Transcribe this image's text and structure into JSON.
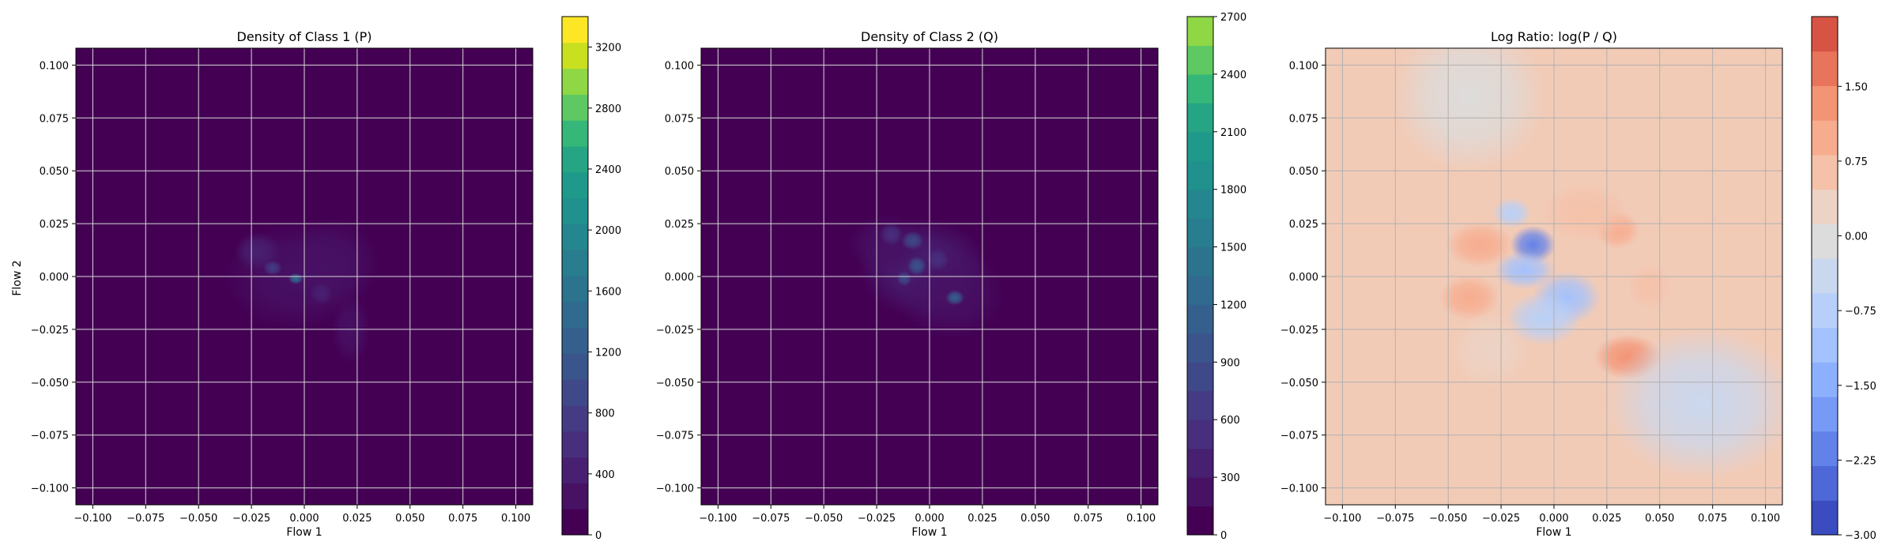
{
  "chart_data": [
    {
      "type": "heatmap",
      "title": "Density of Class 1 (P)",
      "xlabel": "Flow 1",
      "ylabel": "Flow 2",
      "xlim": [
        -0.108,
        0.108
      ],
      "ylim": [
        -0.108,
        0.108
      ],
      "xticks": [
        -0.1,
        -0.075,
        -0.05,
        -0.025,
        0.0,
        0.025,
        0.05,
        0.075,
        0.1
      ],
      "xtick_labels": [
        "−0.100",
        "−0.075",
        "−0.050",
        "−0.025",
        "0.000",
        "0.025",
        "0.050",
        "0.075",
        "0.100"
      ],
      "yticks": [
        -0.1,
        -0.075,
        -0.05,
        -0.025,
        0.0,
        0.025,
        0.05,
        0.075,
        0.1
      ],
      "ytick_labels": [
        "−0.100",
        "−0.075",
        "−0.050",
        "−0.025",
        "0.000",
        "0.025",
        "0.050",
        "0.075",
        "0.100"
      ],
      "grid": true,
      "colormap": "viridis",
      "background_color": "#440154",
      "colorbar": {
        "min": 0,
        "max": 3400,
        "ticks": [
          0,
          400,
          800,
          1200,
          1600,
          2000,
          2400,
          2800,
          3200
        ],
        "tick_labels": [
          "0",
          "400",
          "800",
          "1200",
          "1600",
          "2000",
          "2400",
          "2800",
          "3200"
        ],
        "levels": 17,
        "colors": [
          "#440154",
          "#471164",
          "#482071",
          "#472f7d",
          "#443b84",
          "#3f4889",
          "#3a548c",
          "#35608d",
          "#306a8e",
          "#2c738e",
          "#287d8e",
          "#24868e",
          "#20918c",
          "#1f9a8a",
          "#25a584",
          "#35b779",
          "#5ec962",
          "#8fd744",
          "#c8e020",
          "#fde725"
        ]
      },
      "blobs": [
        {
          "x": -0.005,
          "y": 0.0,
          "sx": 0.018,
          "sy": 0.014,
          "level": 0.07
        },
        {
          "x": 0.012,
          "y": 0.006,
          "sx": 0.013,
          "sy": 0.012,
          "level": 0.05
        },
        {
          "x": -0.022,
          "y": 0.012,
          "sx": 0.006,
          "sy": 0.005,
          "level": 0.08
        },
        {
          "x": 0.022,
          "y": -0.025,
          "sx": 0.005,
          "sy": 0.009,
          "level": 0.05
        },
        {
          "x": -0.004,
          "y": -0.001,
          "sx": 0.002,
          "sy": 0.0015,
          "level": 0.42
        },
        {
          "x": -0.015,
          "y": 0.004,
          "sx": 0.0025,
          "sy": 0.002,
          "level": 0.2
        },
        {
          "x": 0.008,
          "y": -0.008,
          "sx": 0.003,
          "sy": 0.003,
          "level": 0.12
        }
      ]
    },
    {
      "type": "heatmap",
      "title": "Density of Class 2 (Q)",
      "xlabel": "Flow 1",
      "ylabel": "",
      "xlim": [
        -0.108,
        0.108
      ],
      "ylim": [
        -0.108,
        0.108
      ],
      "xticks": [
        -0.1,
        -0.075,
        -0.05,
        -0.025,
        0.0,
        0.025,
        0.05,
        0.075,
        0.1
      ],
      "xtick_labels": [
        "−0.100",
        "−0.075",
        "−0.050",
        "−0.025",
        "0.000",
        "0.025",
        "0.050",
        "0.075",
        "0.100"
      ],
      "yticks": [
        -0.1,
        -0.075,
        -0.05,
        -0.025,
        0.0,
        0.025,
        0.05,
        0.075,
        0.1
      ],
      "ytick_labels": [
        "−0.100",
        "−0.075",
        "−0.050",
        "−0.025",
        "0.000",
        "0.025",
        "0.050",
        "0.075",
        "0.100"
      ],
      "grid": true,
      "colormap": "viridis",
      "background_color": "#440154",
      "colorbar": {
        "min": 0,
        "max": 2700,
        "ticks": [
          0,
          300,
          600,
          900,
          1200,
          1500,
          1800,
          2100,
          2400,
          2700
        ],
        "tick_labels": [
          "0",
          "300",
          "600",
          "900",
          "1200",
          "1500",
          "1800",
          "2100",
          "2400",
          "2700"
        ],
        "levels": 18,
        "colors": [
          "#440154",
          "#471164",
          "#482071",
          "#472f7d",
          "#443b84",
          "#3f4889",
          "#3a548c",
          "#35608d",
          "#306a8e",
          "#2c738e",
          "#287d8e",
          "#24868e",
          "#20918c",
          "#1f9a8a",
          "#25a584",
          "#35b779",
          "#5ec962",
          "#8fd744"
        ]
      },
      "blobs": [
        {
          "x": -0.003,
          "y": 0.004,
          "sx": 0.017,
          "sy": 0.013,
          "level": 0.09
        },
        {
          "x": 0.01,
          "y": -0.008,
          "sx": 0.014,
          "sy": 0.012,
          "level": 0.08
        },
        {
          "x": -0.02,
          "y": 0.015,
          "sx": 0.01,
          "sy": 0.008,
          "level": 0.06
        },
        {
          "x": -0.008,
          "y": 0.017,
          "sx": 0.003,
          "sy": 0.0025,
          "level": 0.3
        },
        {
          "x": -0.006,
          "y": 0.005,
          "sx": 0.0025,
          "sy": 0.0025,
          "level": 0.35
        },
        {
          "x": -0.012,
          "y": -0.001,
          "sx": 0.002,
          "sy": 0.002,
          "level": 0.32
        },
        {
          "x": 0.012,
          "y": -0.01,
          "sx": 0.0025,
          "sy": 0.002,
          "level": 0.42
        },
        {
          "x": 0.004,
          "y": 0.008,
          "sx": 0.003,
          "sy": 0.003,
          "level": 0.2
        },
        {
          "x": -0.018,
          "y": 0.02,
          "sx": 0.003,
          "sy": 0.003,
          "level": 0.15
        }
      ]
    },
    {
      "type": "heatmap",
      "title": "Log Ratio: log(P / Q)",
      "xlabel": "Flow 1",
      "ylabel": "",
      "xlim": [
        -0.108,
        0.108
      ],
      "ylim": [
        -0.108,
        0.108
      ],
      "xticks": [
        -0.1,
        -0.075,
        -0.05,
        -0.025,
        0.0,
        0.025,
        0.05,
        0.075,
        0.1
      ],
      "xtick_labels": [
        "−0.100",
        "−0.075",
        "−0.050",
        "−0.025",
        "0.000",
        "0.025",
        "0.050",
        "0.075",
        "0.100"
      ],
      "yticks": [
        -0.1,
        -0.075,
        -0.05,
        -0.025,
        0.0,
        0.025,
        0.05,
        0.075,
        0.1
      ],
      "ytick_labels": [
        "−0.100",
        "−0.075",
        "−0.050",
        "−0.025",
        "0.000",
        "0.025",
        "0.050",
        "0.075",
        "0.100"
      ],
      "grid": true,
      "colormap": "coolwarm",
      "background_color": "#f2cbb7",
      "colorbar": {
        "min": -3.0,
        "max": 2.2,
        "ticks": [
          -3.0,
          -2.25,
          -1.5,
          -0.75,
          0.0,
          0.75,
          1.5
        ],
        "tick_labels": [
          "−3.00",
          "−2.25",
          "−1.50",
          "−0.75",
          "0.00",
          "0.75",
          "1.50"
        ],
        "levels": 14,
        "colors": [
          "#3b4cc0",
          "#4e68d8",
          "#6282ea",
          "#779af7",
          "#8db0fe",
          "#a3c2fe",
          "#b8d0f9",
          "#cad8ef",
          "#dddcdc",
          "#ecd3c5",
          "#f5c1a9",
          "#f7ac8e",
          "#f39475",
          "#e7745b",
          "#d75445"
        ]
      },
      "blobs": [
        {
          "x": -0.01,
          "y": 0.015,
          "sx": 0.006,
          "sy": 0.005,
          "value": -2.2
        },
        {
          "x": -0.014,
          "y": 0.003,
          "sx": 0.008,
          "sy": 0.005,
          "value": -1.3
        },
        {
          "x": 0.006,
          "y": -0.01,
          "sx": 0.009,
          "sy": 0.007,
          "value": -1.0
        },
        {
          "x": -0.005,
          "y": -0.02,
          "sx": 0.01,
          "sy": 0.007,
          "value": -0.8
        },
        {
          "x": -0.02,
          "y": 0.03,
          "sx": 0.005,
          "sy": 0.004,
          "value": -0.6
        },
        {
          "x": 0.035,
          "y": -0.038,
          "sx": 0.009,
          "sy": 0.006,
          "value": 1.3
        },
        {
          "x": -0.035,
          "y": 0.015,
          "sx": 0.009,
          "sy": 0.006,
          "value": 1.0
        },
        {
          "x": -0.04,
          "y": -0.01,
          "sx": 0.008,
          "sy": 0.006,
          "value": 0.9
        },
        {
          "x": 0.03,
          "y": 0.022,
          "sx": 0.006,
          "sy": 0.005,
          "value": 0.9
        },
        {
          "x": 0.045,
          "y": -0.005,
          "sx": 0.006,
          "sy": 0.006,
          "value": 0.8
        },
        {
          "x": 0.015,
          "y": 0.03,
          "sx": 0.012,
          "sy": 0.008,
          "value": 0.6
        },
        {
          "x": -0.03,
          "y": -0.035,
          "sx": 0.01,
          "sy": 0.01,
          "value": 0.5
        },
        {
          "x": 0.07,
          "y": -0.06,
          "sx": 0.025,
          "sy": 0.02,
          "value": -0.25
        },
        {
          "x": -0.04,
          "y": 0.085,
          "sx": 0.02,
          "sy": 0.02,
          "value": -0.2
        }
      ]
    }
  ]
}
